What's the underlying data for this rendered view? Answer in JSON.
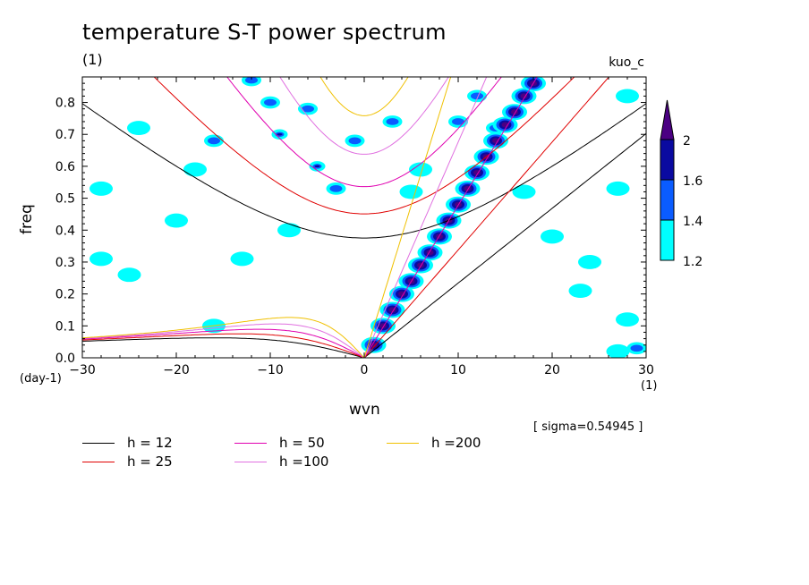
{
  "title": "temperature S-T power spectrum",
  "subtitle_unit": "(1)",
  "experiment": "kuo_c",
  "sigma_text": "[ sigma=0.54945 ]",
  "chart_data": {
    "type": "heatmap",
    "xlabel": "wvn",
    "ylabel": "freq",
    "x_unit": "(1)",
    "y_unit": "(day-1)",
    "xlim": [
      -30,
      30
    ],
    "ylim": [
      0,
      0.88
    ],
    "x_ticks": [
      -30,
      -20,
      -10,
      0,
      10,
      20,
      30
    ],
    "y_ticks": [
      0.0,
      0.1,
      0.2,
      0.3,
      0.4,
      0.5,
      0.6,
      0.7,
      0.8
    ],
    "colorbar": {
      "levels": [
        1.2,
        1.4,
        1.6,
        2
      ],
      "colors": [
        "#00ffff",
        "#0a5cff",
        "#0a0aa0",
        "#4b0082"
      ]
    },
    "dispersion_curves": [
      {
        "label": "h = 12",
        "h": 12,
        "color": "#000000"
      },
      {
        "label": "h = 25",
        "h": 25,
        "color": "#e00000"
      },
      {
        "label": "h = 50",
        "h": 50,
        "color": "#e000b0"
      },
      {
        "label": "h =100",
        "h": 100,
        "color": "#e070e0"
      },
      {
        "label": "h =200",
        "h": 200,
        "color": "#f0c000"
      }
    ],
    "ridge": [
      {
        "x": 1,
        "y": 0.04
      },
      {
        "x": 2,
        "y": 0.1
      },
      {
        "x": 3,
        "y": 0.15
      },
      {
        "x": 4,
        "y": 0.2
      },
      {
        "x": 5,
        "y": 0.24
      },
      {
        "x": 6,
        "y": 0.29
      },
      {
        "x": 7,
        "y": 0.33
      },
      {
        "x": 8,
        "y": 0.38
      },
      {
        "x": 9,
        "y": 0.43
      },
      {
        "x": 10,
        "y": 0.48
      },
      {
        "x": 11,
        "y": 0.53
      },
      {
        "x": 12,
        "y": 0.58
      },
      {
        "x": 13,
        "y": 0.63
      },
      {
        "x": 14,
        "y": 0.68
      },
      {
        "x": 15,
        "y": 0.73
      },
      {
        "x": 16,
        "y": 0.77
      },
      {
        "x": 17,
        "y": 0.82
      },
      {
        "x": 18,
        "y": 0.86
      }
    ],
    "features": [
      {
        "x": -10,
        "y": 0.8,
        "level": 2
      },
      {
        "x": -9,
        "y": 0.7,
        "level": 3
      },
      {
        "x": -5,
        "y": 0.6,
        "level": 3
      },
      {
        "x": -3,
        "y": 0.53,
        "level": 2
      },
      {
        "x": -1,
        "y": 0.68,
        "level": 2
      },
      {
        "x": -16,
        "y": 0.68,
        "level": 2
      },
      {
        "x": -6,
        "y": 0.78,
        "level": 2
      },
      {
        "x": -12,
        "y": 0.87,
        "level": 2
      },
      {
        "x": 3,
        "y": 0.74,
        "level": 2
      },
      {
        "x": 6,
        "y": 0.59,
        "level": 1
      },
      {
        "x": 5,
        "y": 0.52,
        "level": 1
      },
      {
        "x": 12,
        "y": 0.82,
        "level": 2
      },
      {
        "x": 14,
        "y": 0.72,
        "level": 2
      },
      {
        "x": 10,
        "y": 0.74,
        "level": 2
      },
      {
        "x": -28,
        "y": 0.53,
        "level": 1
      },
      {
        "x": -25,
        "y": 0.26,
        "level": 1
      },
      {
        "x": -20,
        "y": 0.43,
        "level": 1
      },
      {
        "x": -28,
        "y": 0.31,
        "level": 1
      },
      {
        "x": -24,
        "y": 0.72,
        "level": 1
      },
      {
        "x": -8,
        "y": 0.4,
        "level": 1
      },
      {
        "x": 27,
        "y": 0.53,
        "level": 1
      },
      {
        "x": 28,
        "y": 0.82,
        "level": 1
      },
      {
        "x": 24,
        "y": 0.3,
        "level": 1
      },
      {
        "x": 29,
        "y": 0.03,
        "level": 2
      },
      {
        "x": 27,
        "y": 0.02,
        "level": 1
      },
      {
        "x": 20,
        "y": 0.38,
        "level": 1
      },
      {
        "x": 23,
        "y": 0.21,
        "level": 1
      },
      {
        "x": 28,
        "y": 0.12,
        "level": 1
      },
      {
        "x": -16,
        "y": 0.1,
        "level": 1
      },
      {
        "x": -13,
        "y": 0.31,
        "level": 1
      },
      {
        "x": 17,
        "y": 0.52,
        "level": 1
      },
      {
        "x": -18,
        "y": 0.59,
        "level": 1
      }
    ]
  }
}
